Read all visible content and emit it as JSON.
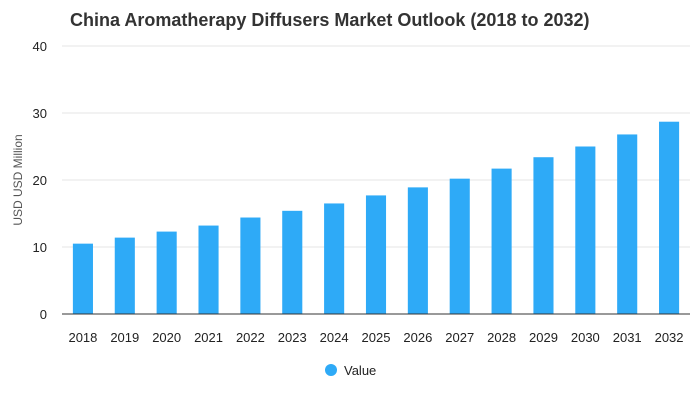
{
  "chart_data": {
    "type": "bar",
    "title": "China Aromatherapy Diffusers Market Outlook (2018 to 2032)",
    "xlabel": "",
    "ylabel": "USD USD Million",
    "ylim": [
      0,
      40
    ],
    "yticks": [
      0,
      10,
      20,
      30,
      40
    ],
    "grid": true,
    "legend_position": "bottom",
    "categories": [
      "2018",
      "2019",
      "2020",
      "2021",
      "2022",
      "2023",
      "2024",
      "2025",
      "2026",
      "2027",
      "2028",
      "2029",
      "2030",
      "2031",
      "2032"
    ],
    "series": [
      {
        "name": "Value",
        "color": "#2eaaf7",
        "values": [
          10.5,
          11.4,
          12.3,
          13.2,
          14.4,
          15.4,
          16.5,
          17.7,
          18.9,
          20.2,
          21.7,
          23.4,
          25.0,
          26.8,
          28.7
        ]
      }
    ]
  }
}
